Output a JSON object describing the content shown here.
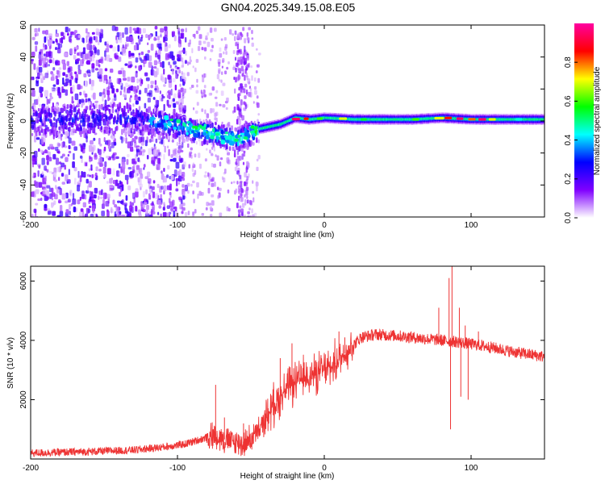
{
  "title": "GN04.2025.349.15.08.E05",
  "chart_data": [
    {
      "type": "heatmap",
      "name": "spectrogram",
      "xlabel": "Height of straight line (km)",
      "ylabel": "Frequency (Hz)",
      "xlim": [
        -200,
        150
      ],
      "ylim": [
        -60,
        60
      ],
      "xticks": [
        -200,
        -100,
        0,
        100
      ],
      "yticks": [
        -60,
        -40,
        -20,
        0,
        20,
        40,
        60
      ],
      "colorbar": {
        "label": "Normalized spectral amplitude",
        "range": [
          0,
          1
        ],
        "ticks": [
          0.0,
          0.2,
          0.4,
          0.6,
          0.8
        ],
        "colors": [
          "#ffffff",
          "#8000ff",
          "#0000ff",
          "#00ffff",
          "#00ff00",
          "#ffff00",
          "#ff0000",
          "#ff00a0"
        ]
      },
      "ridge": [
        {
          "x": -200,
          "f": 2
        },
        {
          "x": -180,
          "f": 2
        },
        {
          "x": -160,
          "f": 3
        },
        {
          "x": -140,
          "f": 3
        },
        {
          "x": -120,
          "f": 2
        },
        {
          "x": -100,
          "f": -2
        },
        {
          "x": -80,
          "f": -6
        },
        {
          "x": -60,
          "f": -10
        },
        {
          "x": -50,
          "f": -6
        },
        {
          "x": -40,
          "f": -4
        },
        {
          "x": -30,
          "f": -2
        },
        {
          "x": -20,
          "f": 2
        },
        {
          "x": -10,
          "f": 1
        },
        {
          "x": 0,
          "f": 2
        },
        {
          "x": 20,
          "f": 1
        },
        {
          "x": 60,
          "f": 1
        },
        {
          "x": 80,
          "f": 2
        },
        {
          "x": 100,
          "f": 1
        },
        {
          "x": 150,
          "f": 1
        }
      ]
    },
    {
      "type": "line",
      "name": "snr",
      "xlabel": "Height of straight line (km)",
      "ylabel": "SNR (10 * v/v)",
      "xlim": [
        -200,
        150
      ],
      "ylim": [
        0,
        6500
      ],
      "xticks": [
        -200,
        -100,
        0,
        100
      ],
      "yticks": [
        2000,
        4000,
        6000
      ],
      "color": "#ee3333",
      "envelope": [
        {
          "x": -200,
          "y": 200
        },
        {
          "x": -160,
          "y": 250
        },
        {
          "x": -130,
          "y": 300
        },
        {
          "x": -110,
          "y": 400
        },
        {
          "x": -95,
          "y": 500
        },
        {
          "x": -85,
          "y": 650
        },
        {
          "x": -75,
          "y": 800
        },
        {
          "x": -65,
          "y": 600
        },
        {
          "x": -55,
          "y": 500
        },
        {
          "x": -45,
          "y": 900
        },
        {
          "x": -35,
          "y": 1800
        },
        {
          "x": -25,
          "y": 2400
        },
        {
          "x": -15,
          "y": 2700
        },
        {
          "x": -5,
          "y": 2900
        },
        {
          "x": 5,
          "y": 3100
        },
        {
          "x": 15,
          "y": 3600
        },
        {
          "x": 25,
          "y": 4100
        },
        {
          "x": 35,
          "y": 4200
        },
        {
          "x": 50,
          "y": 4150
        },
        {
          "x": 70,
          "y": 4050
        },
        {
          "x": 90,
          "y": 3950
        },
        {
          "x": 110,
          "y": 3800
        },
        {
          "x": 130,
          "y": 3600
        },
        {
          "x": 150,
          "y": 3450
        }
      ],
      "spikes": [
        {
          "x": -74,
          "y": 2500
        },
        {
          "x": -68,
          "y": 1400
        },
        {
          "x": -55,
          "y": 1200
        },
        {
          "x": -30,
          "y": 3400
        },
        {
          "x": -22,
          "y": 3900
        },
        {
          "x": -16,
          "y": 3200
        },
        {
          "x": -6,
          "y": 3300
        },
        {
          "x": 10,
          "y": 4300
        },
        {
          "x": 14,
          "y": 4100
        },
        {
          "x": 78,
          "y": 5100
        },
        {
          "x": 85,
          "y": 6100
        },
        {
          "x": 87,
          "y": 6500
        },
        {
          "x": 92,
          "y": 5100
        },
        {
          "x": 96,
          "y": 4500
        },
        {
          "x": 105,
          "y": 4300
        }
      ],
      "dips": [
        {
          "x": 86,
          "y": 1000
        },
        {
          "x": 93,
          "y": 2100
        },
        {
          "x": 98,
          "y": 2000
        }
      ]
    }
  ]
}
